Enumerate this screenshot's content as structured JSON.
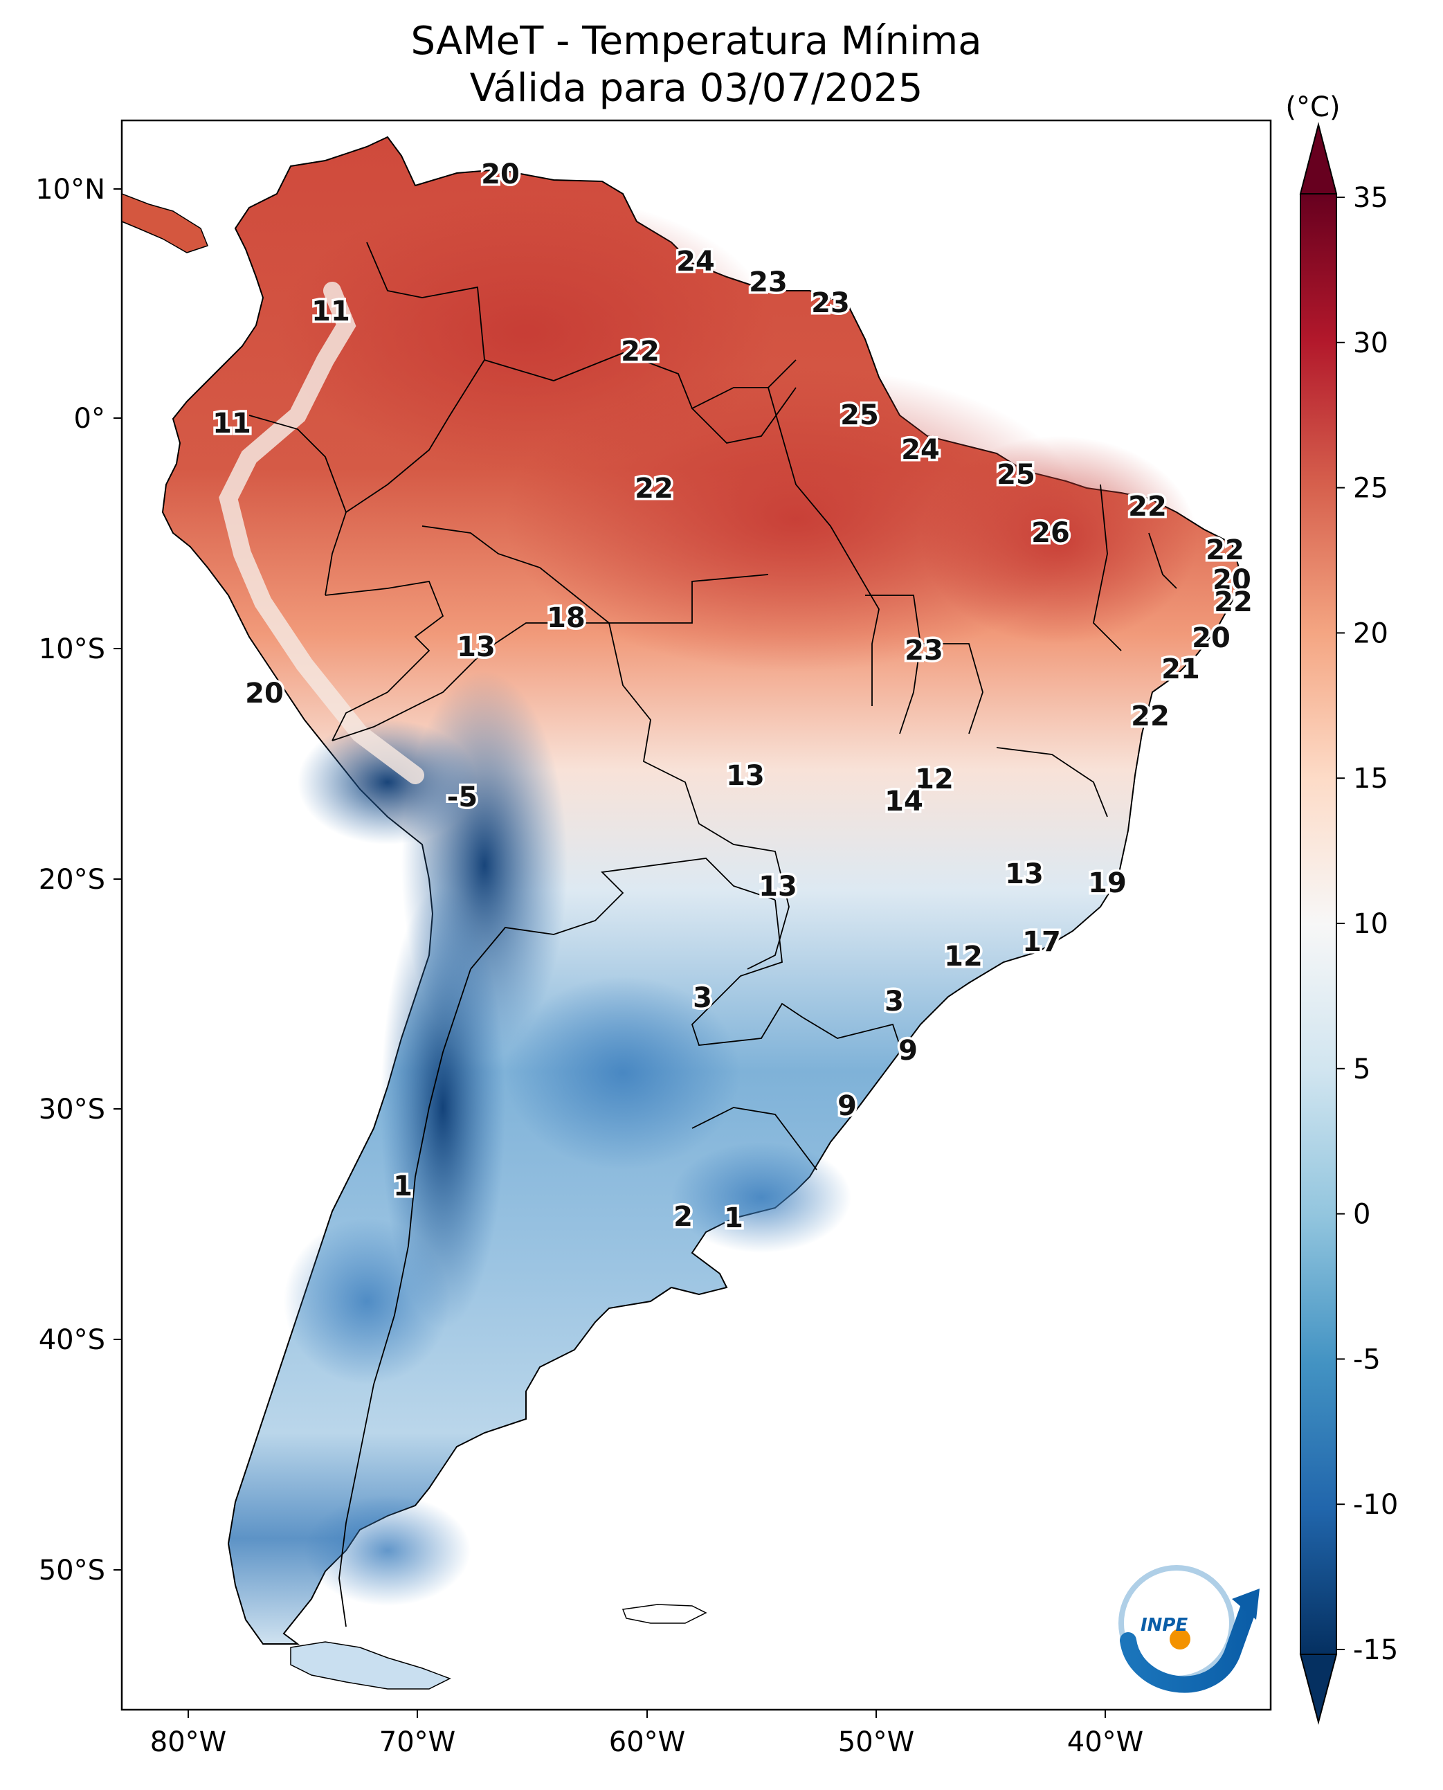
{
  "title": "SAMeT - Temperatura Mínima",
  "subtitle": "Válida para 03/07/2025",
  "colorbar": {
    "unit": "(°C)",
    "ticks": [
      "35",
      "30",
      "25",
      "20",
      "15",
      "10",
      "5",
      "0",
      "-5",
      "-10",
      "-15"
    ],
    "range": [
      -15,
      35
    ]
  },
  "axes": {
    "lon_ticks": [
      "80°W",
      "70°W",
      "60°W",
      "50°W",
      "40°W"
    ],
    "lat_ticks": [
      "10°N",
      "0°",
      "10°S",
      "20°S",
      "30°S",
      "40°S",
      "50°S"
    ]
  },
  "logo": "INPE",
  "colors": {
    "hot": "#c63b34",
    "warm": "#ef9a76",
    "neutral": "#f7f0ec",
    "cool": "#a9cce4",
    "cold": "#2d6cad",
    "very_cold": "#0d3c74"
  },
  "map_labels": [
    {
      "value": "20"
    },
    {
      "value": "11"
    },
    {
      "value": "24"
    },
    {
      "value": "23"
    },
    {
      "value": "23"
    },
    {
      "value": "22"
    },
    {
      "value": "11"
    },
    {
      "value": "25"
    },
    {
      "value": "24"
    },
    {
      "value": "25"
    },
    {
      "value": "22"
    },
    {
      "value": "22"
    },
    {
      "value": "26"
    },
    {
      "value": "22"
    },
    {
      "value": "20"
    },
    {
      "value": "22"
    },
    {
      "value": "18"
    },
    {
      "value": "13"
    },
    {
      "value": "23"
    },
    {
      "value": "20"
    },
    {
      "value": "21"
    },
    {
      "value": "20"
    },
    {
      "value": "22"
    },
    {
      "value": "13"
    },
    {
      "value": "12"
    },
    {
      "value": "14"
    },
    {
      "value": "-5"
    },
    {
      "value": "13"
    },
    {
      "value": "13"
    },
    {
      "value": "19"
    },
    {
      "value": "17"
    },
    {
      "value": "12"
    },
    {
      "value": "3"
    },
    {
      "value": "3"
    },
    {
      "value": "9"
    },
    {
      "value": "9"
    },
    {
      "value": "1"
    },
    {
      "value": "2"
    },
    {
      "value": "1"
    }
  ]
}
